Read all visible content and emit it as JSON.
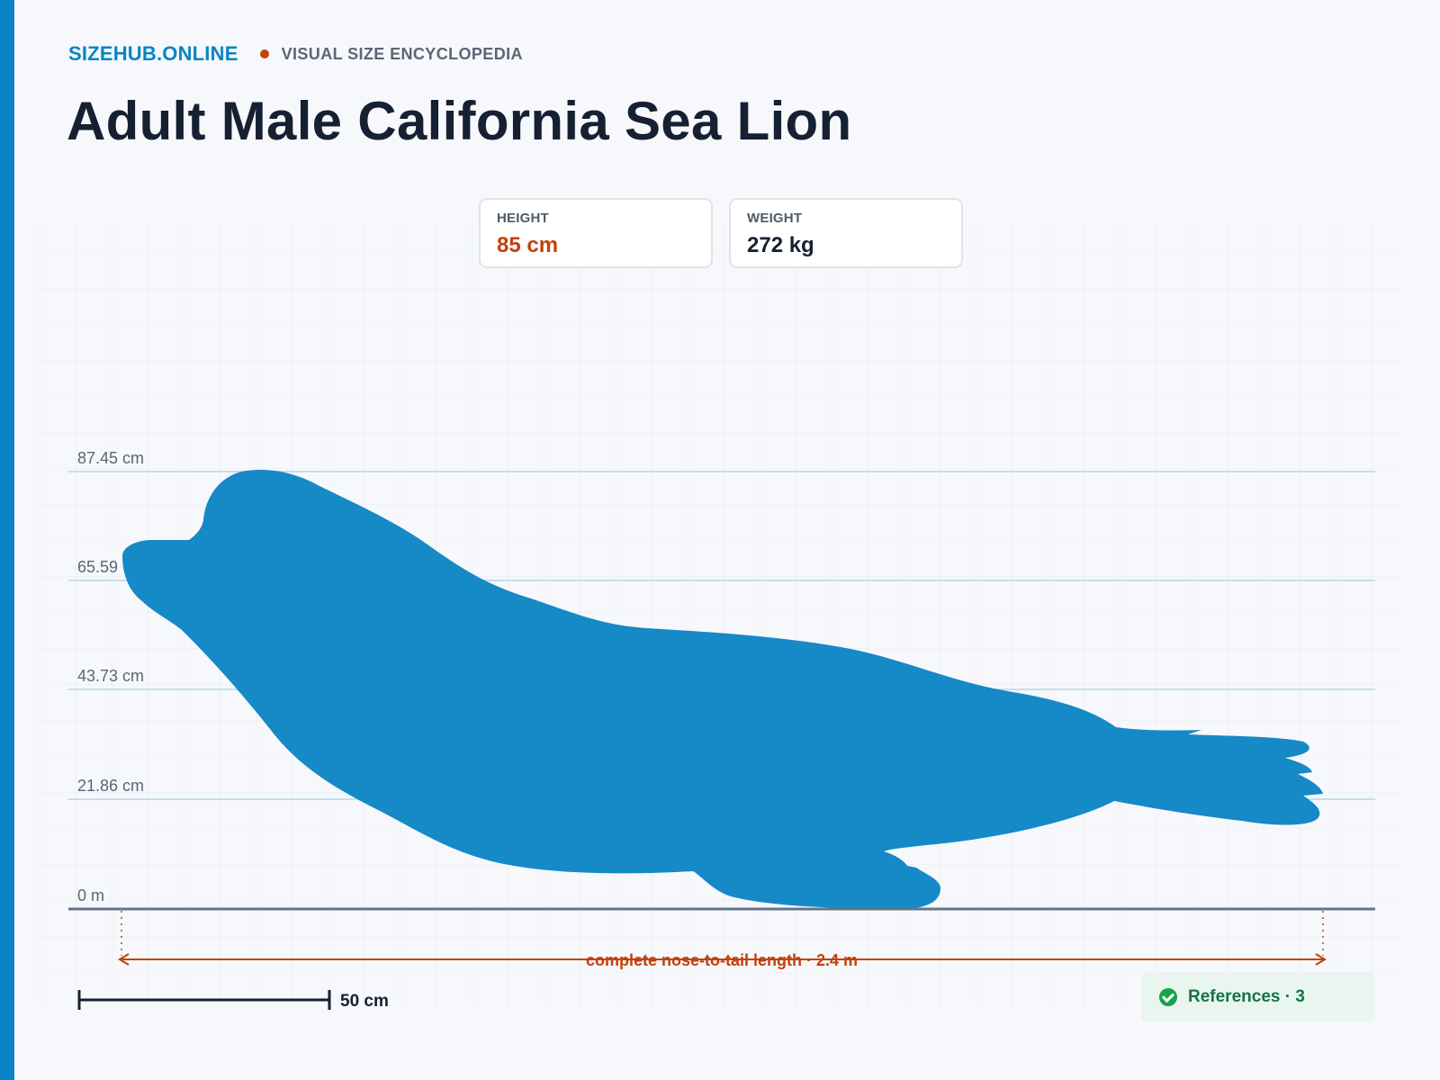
{
  "header": {
    "brand": "SIZEHUB.ONLINE",
    "tagline": "VISUAL SIZE ENCYCLOPEDIA",
    "title": "Adult Male California Sea Lion"
  },
  "stats": [
    {
      "label": "HEIGHT",
      "value": "85 cm"
    },
    {
      "label": "WEIGHT",
      "value": "272 kg"
    }
  ],
  "diagram": {
    "height_ticks": [
      "87.45 cm",
      "65.59",
      "43.73 cm",
      "21.86 cm",
      "0 m"
    ],
    "length_label": "complete nose-to-tail length · 2.4 m",
    "scale_bar_label": "50 cm"
  },
  "references": {
    "label": "References · 3",
    "icon": "check-circle-icon"
  },
  "colors": {
    "accent": "#0a84c6",
    "silhouette": "#1689c7",
    "highlight": "#c2410c",
    "references_bg": "#e8f6ef",
    "references_text": "#157347"
  }
}
